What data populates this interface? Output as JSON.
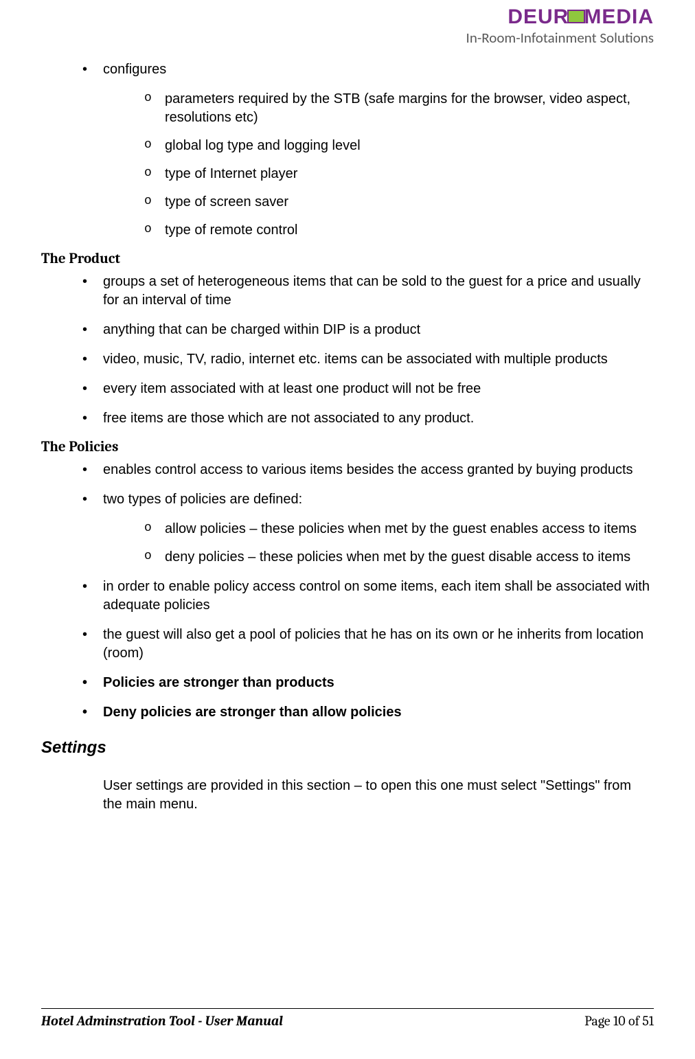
{
  "logo": {
    "brand_pre": "DEUR",
    "brand_post": "MEDIA",
    "tagline": "In-Room-Infotainment Solutions",
    "brand_color": "#7a2a8b",
    "icon_color": "#8fc73e",
    "tagline_color": "#595959"
  },
  "configures": {
    "label": "configures",
    "subitems": [
      "parameters required by the STB (safe margins for the browser, video aspect, resolutions etc)",
      "global log type and logging level",
      "type of Internet player",
      "type of screen saver",
      "type of remote control"
    ]
  },
  "product": {
    "heading": "The Product",
    "items": [
      "groups a set of heterogeneous items that can be sold to the guest for a price and usually for an interval of time",
      "anything that can be charged within DIP is a product",
      "video, music, TV, radio, internet etc. items can be associated with multiple products",
      "every item associated with at least one product will not be free",
      "free items are those which are not associated to any product."
    ]
  },
  "policies": {
    "heading": "The Policies",
    "item0": "enables control access to various items besides the access granted by buying products",
    "item1": "two types of policies are defined:",
    "item1_sub": [
      "allow policies – these policies when met by the guest enables access to items",
      "deny policies – these policies when met by the guest disable access to items"
    ],
    "item2": "in order to enable policy access control on some items, each item shall be associated with adequate policies",
    "item3": "the guest will also get a pool of policies that he has on its own or he inherits from location (room)",
    "item4": "Policies are stronger than products",
    "item5": "Deny policies are stronger than allow policies"
  },
  "settings": {
    "heading": "Settings",
    "body": "User settings are provided in this section – to open this one must select \"Settings\" from the main menu."
  },
  "footer": {
    "left": "Hotel Adminstration Tool - User Manual",
    "right": "Page 10 of 51"
  }
}
